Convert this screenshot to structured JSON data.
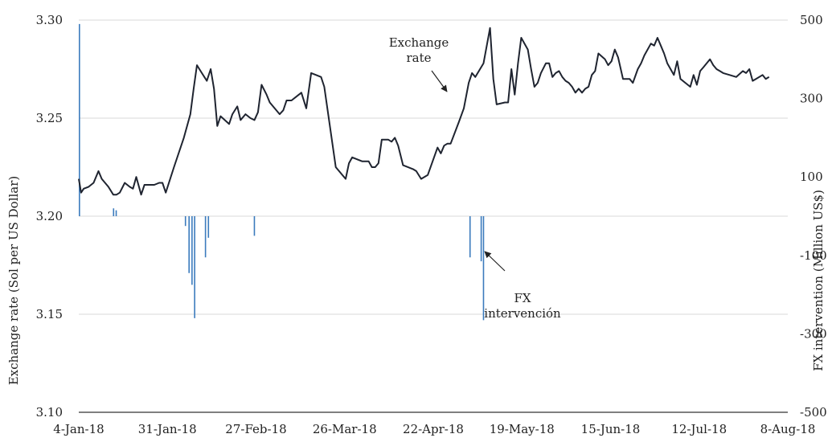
{
  "chart_data": {
    "type": "bar+line",
    "title": "",
    "left_axis_label": "Exchange rate (Sol per US Dollar)",
    "right_axis_label": "FX intervention (Million US$)",
    "left_ylim": [
      3.1,
      3.3
    ],
    "left_ticks": [
      "3.30",
      "3.25",
      "3.20",
      "3.15",
      "3.10"
    ],
    "left_tick_values": [
      3.3,
      3.25,
      3.2,
      3.15,
      3.1
    ],
    "right_ylim": [
      -500,
      500
    ],
    "right_ticks": [
      "500",
      "300",
      "100",
      "-100",
      "-300",
      "-500"
    ],
    "right_tick_values": [
      500,
      300,
      100,
      -100,
      -300,
      -500
    ],
    "x_ticks": [
      "4-Jan-18",
      "31-Jan-18",
      "27-Feb-18",
      "26-Mar-18",
      "22-Apr-18",
      "19-May-18",
      "15-Jun-18",
      "12-Jul-18",
      "8-Aug-18"
    ],
    "x_tick_days": [
      0,
      27,
      54,
      81,
      108,
      135,
      162,
      189,
      216
    ],
    "grid": true,
    "annotations": [
      {
        "text_lines": [
          "Exchange",
          "rate"
        ],
        "target_series": "exchange_rate"
      },
      {
        "text_lines": [
          "FX",
          "intervención"
        ],
        "target_series": "fx_intervention"
      }
    ],
    "series": [
      {
        "key": "exchange_rate",
        "axis": "left",
        "type": "line",
        "color": "#1f2430",
        "points": [
          [
            0,
            3.219
          ],
          [
            0.7,
            3.212
          ],
          [
            1.5,
            3.214
          ],
          [
            3,
            3.215
          ],
          [
            4.5,
            3.217
          ],
          [
            6,
            3.223
          ],
          [
            7,
            3.219
          ],
          [
            9,
            3.215
          ],
          [
            10.5,
            3.211
          ],
          [
            11.5,
            3.211
          ],
          [
            12.5,
            3.212
          ],
          [
            14,
            3.217
          ],
          [
            15.5,
            3.215
          ],
          [
            16.5,
            3.214
          ],
          [
            17.5,
            3.22
          ],
          [
            19,
            3.211
          ],
          [
            20,
            3.216
          ],
          [
            22,
            3.216
          ],
          [
            23,
            3.216
          ],
          [
            24.5,
            3.217
          ],
          [
            25.5,
            3.217
          ],
          [
            26.5,
            3.212
          ],
          [
            29,
            3.225
          ],
          [
            32,
            3.24
          ],
          [
            34,
            3.252
          ],
          [
            35,
            3.265
          ],
          [
            36,
            3.277
          ],
          [
            37.5,
            3.273
          ],
          [
            39,
            3.269
          ],
          [
            40.2,
            3.275
          ],
          [
            41.2,
            3.265
          ],
          [
            42.2,
            3.246
          ],
          [
            43.2,
            3.251
          ],
          [
            45.8,
            3.247
          ],
          [
            46.8,
            3.252
          ],
          [
            48.3,
            3.256
          ],
          [
            49.3,
            3.249
          ],
          [
            50.8,
            3.252
          ],
          [
            52.3,
            3.25
          ],
          [
            53.5,
            3.249
          ],
          [
            54.6,
            3.253
          ],
          [
            55.7,
            3.267
          ],
          [
            57.2,
            3.262
          ],
          [
            58.2,
            3.258
          ],
          [
            61.2,
            3.252
          ],
          [
            62.3,
            3.254
          ],
          [
            63.3,
            3.259
          ],
          [
            64.8,
            3.259
          ],
          [
            66.3,
            3.261
          ],
          [
            67.8,
            3.263
          ],
          [
            69.3,
            3.255
          ],
          [
            70.8,
            3.273
          ],
          [
            72.3,
            3.272
          ],
          [
            73.8,
            3.271
          ],
          [
            74.8,
            3.266
          ],
          [
            78.3,
            3.225
          ],
          [
            81.3,
            3.219
          ],
          [
            82.3,
            3.227
          ],
          [
            83.3,
            3.23
          ],
          [
            86.3,
            3.228
          ],
          [
            88.3,
            3.228
          ],
          [
            89.3,
            3.225
          ],
          [
            90.3,
            3.225
          ],
          [
            91.3,
            3.227
          ],
          [
            92.3,
            3.239
          ],
          [
            94.3,
            3.239
          ],
          [
            95.3,
            3.238
          ],
          [
            96.3,
            3.24
          ],
          [
            97.3,
            3.236
          ],
          [
            98.8,
            3.226
          ],
          [
            101.8,
            3.224
          ],
          [
            102.8,
            3.223
          ],
          [
            104.3,
            3.219
          ],
          [
            106.3,
            3.221
          ],
          [
            109.3,
            3.235
          ],
          [
            110.3,
            3.232
          ],
          [
            111.3,
            3.236
          ],
          [
            112.3,
            3.237
          ],
          [
            113.3,
            3.237
          ],
          [
            115.8,
            3.248
          ],
          [
            117.3,
            3.255
          ],
          [
            118.8,
            3.268
          ],
          [
            119.8,
            3.273
          ],
          [
            120.8,
            3.271
          ],
          [
            123.3,
            3.278
          ],
          [
            125.3,
            3.296
          ],
          [
            126.3,
            3.27
          ],
          [
            127.3,
            3.257
          ],
          [
            129.8,
            3.258
          ],
          [
            130.8,
            3.258
          ],
          [
            131.8,
            3.275
          ],
          [
            132.8,
            3.262
          ],
          [
            133.8,
            3.278
          ],
          [
            134.8,
            3.291
          ],
          [
            136.8,
            3.285
          ],
          [
            137.8,
            3.275
          ],
          [
            138.8,
            3.266
          ],
          [
            139.8,
            3.268
          ],
          [
            140.8,
            3.273
          ],
          [
            142.3,
            3.278
          ],
          [
            143.3,
            3.278
          ],
          [
            144.3,
            3.271
          ],
          [
            145.3,
            3.273
          ],
          [
            146.3,
            3.274
          ],
          [
            147.3,
            3.271
          ],
          [
            148.3,
            3.269
          ],
          [
            149.3,
            3.268
          ],
          [
            150.3,
            3.266
          ],
          [
            151.3,
            3.263
          ],
          [
            152.3,
            3.265
          ],
          [
            153.3,
            3.263
          ],
          [
            154.3,
            3.265
          ],
          [
            155.3,
            3.266
          ],
          [
            156.3,
            3.272
          ],
          [
            157.3,
            3.274
          ],
          [
            158.3,
            3.283
          ],
          [
            160.3,
            3.28
          ],
          [
            161.3,
            3.277
          ],
          [
            162.3,
            3.279
          ],
          [
            163.3,
            3.285
          ],
          [
            164.3,
            3.281
          ],
          [
            165.8,
            3.27
          ],
          [
            167.8,
            3.27
          ],
          [
            168.8,
            3.268
          ],
          [
            170.3,
            3.275
          ],
          [
            171.3,
            3.278
          ],
          [
            172.3,
            3.282
          ],
          [
            174.3,
            3.288
          ],
          [
            175.3,
            3.287
          ],
          [
            176.3,
            3.291
          ],
          [
            177.3,
            3.287
          ],
          [
            178.3,
            3.283
          ],
          [
            179.3,
            3.278
          ],
          [
            181.3,
            3.272
          ],
          [
            182.3,
            3.279
          ],
          [
            183.3,
            3.27
          ],
          [
            184.8,
            3.268
          ],
          [
            186.3,
            3.266
          ],
          [
            187.3,
            3.272
          ],
          [
            188.3,
            3.267
          ],
          [
            189.3,
            3.274
          ],
          [
            190.3,
            3.276
          ],
          [
            192.3,
            3.28
          ],
          [
            193.3,
            3.277
          ],
          [
            194.3,
            3.275
          ],
          [
            195.3,
            3.274
          ],
          [
            196.3,
            3.273
          ],
          [
            198.3,
            3.272
          ],
          [
            200.3,
            3.271
          ],
          [
            202.3,
            3.274
          ],
          [
            203.3,
            3.273
          ],
          [
            204.3,
            3.275
          ],
          [
            205.3,
            3.269
          ],
          [
            206.3,
            3.27
          ],
          [
            208.3,
            3.272
          ],
          [
            209.3,
            3.27
          ],
          [
            210.3,
            3.271
          ]
        ]
      },
      {
        "key": "fx_intervention",
        "axis": "right",
        "type": "bar",
        "color": "#3b7bbd",
        "points": [
          [
            0.2,
            490
          ],
          [
            10.6,
            20
          ],
          [
            11.4,
            15
          ],
          [
            32.5,
            -25
          ],
          [
            33.6,
            -145
          ],
          [
            34.5,
            -175
          ],
          [
            35.3,
            -260
          ],
          [
            38.6,
            -105
          ],
          [
            39.5,
            -55
          ],
          [
            53.5,
            -50
          ],
          [
            119.2,
            -105
          ],
          [
            122.6,
            -115
          ],
          [
            123.3,
            -265
          ]
        ]
      }
    ]
  }
}
